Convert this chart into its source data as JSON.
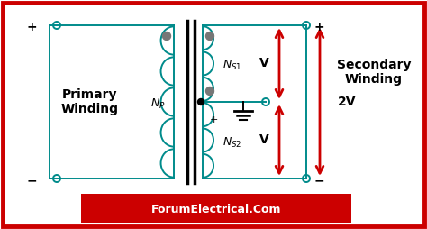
{
  "bg_color": "#ffffff",
  "border_color": "#cc0000",
  "teal_color": "#008B8B",
  "red_color": "#cc0000",
  "black_color": "#000000",
  "white_color": "#ffffff",
  "footer_bg": "#cc0000",
  "footer_text": "ForumElectrical.Com",
  "footer_text_color": "#ffffff",
  "primary_label": "Primary\nWinding",
  "secondary_label": "Secondary\nWinding",
  "v_label": "V",
  "2v_label": "2V",
  "figw": 4.74,
  "figh": 2.54,
  "dpi": 100
}
